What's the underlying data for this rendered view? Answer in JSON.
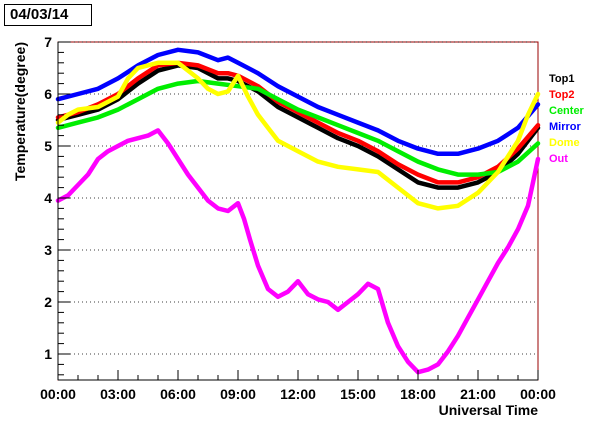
{
  "title": "04/03/14",
  "chart_data": {
    "type": "line",
    "title": "04/03/14",
    "xlabel": "Universal Time",
    "ylabel": "Temperature(degree)",
    "xlim": [
      0,
      24
    ],
    "ylim": [
      0.5,
      7
    ],
    "x_ticks": [
      {
        "value": 0,
        "label": "00:00"
      },
      {
        "value": 3,
        "label": "03:00"
      },
      {
        "value": 6,
        "label": "06:00"
      },
      {
        "value": 9,
        "label": "09:00"
      },
      {
        "value": 12,
        "label": "12:00"
      },
      {
        "value": 15,
        "label": "15:00"
      },
      {
        "value": 18,
        "label": "18:00"
      },
      {
        "value": 21,
        "label": "21:00"
      },
      {
        "value": 24,
        "label": "00:00"
      }
    ],
    "y_ticks": [
      {
        "value": 1,
        "label": "1"
      },
      {
        "value": 2,
        "label": "2"
      },
      {
        "value": 3,
        "label": "3"
      },
      {
        "value": 4,
        "label": "4"
      },
      {
        "value": 5,
        "label": "5"
      },
      {
        "value": 6,
        "label": "6"
      },
      {
        "value": 7,
        "label": "7"
      }
    ],
    "grid": "horizontal dotted",
    "legend_position": "right",
    "series": [
      {
        "name": "Top1",
        "color": "#000000",
        "x": [
          0,
          1,
          2,
          3,
          4,
          5,
          6,
          7,
          8,
          8.5,
          9,
          10,
          11,
          12,
          13,
          14,
          15,
          16,
          17,
          18,
          19,
          20,
          21,
          22,
          23,
          24
        ],
        "y": [
          5.5,
          5.6,
          5.7,
          5.9,
          6.2,
          6.45,
          6.55,
          6.5,
          6.3,
          6.3,
          6.25,
          6.05,
          5.75,
          5.55,
          5.35,
          5.15,
          5.0,
          4.8,
          4.55,
          4.3,
          4.2,
          4.2,
          4.3,
          4.5,
          4.85,
          5.35
        ]
      },
      {
        "name": "Top2",
        "color": "#ff0000",
        "x": [
          0,
          1,
          2,
          3,
          4,
          5,
          6,
          7,
          8,
          8.5,
          9,
          10,
          11,
          12,
          13,
          14,
          15,
          16,
          17,
          18,
          19,
          20,
          21,
          22,
          23,
          24
        ],
        "y": [
          5.55,
          5.65,
          5.8,
          6.0,
          6.3,
          6.55,
          6.6,
          6.55,
          6.4,
          6.4,
          6.35,
          6.15,
          5.85,
          5.65,
          5.45,
          5.25,
          5.1,
          4.9,
          4.65,
          4.45,
          4.3,
          4.3,
          4.4,
          4.6,
          4.95,
          5.4
        ]
      },
      {
        "name": "Center",
        "color": "#00ee00",
        "x": [
          0,
          1,
          2,
          3,
          4,
          5,
          6,
          7,
          8,
          9,
          10,
          11,
          12,
          13,
          14,
          15,
          16,
          17,
          18,
          19,
          20,
          21,
          22,
          23,
          24
        ],
        "y": [
          5.35,
          5.45,
          5.55,
          5.7,
          5.9,
          6.1,
          6.2,
          6.25,
          6.2,
          6.15,
          6.1,
          5.9,
          5.7,
          5.55,
          5.4,
          5.25,
          5.1,
          4.9,
          4.7,
          4.55,
          4.45,
          4.45,
          4.5,
          4.7,
          5.05
        ]
      },
      {
        "name": "Mirror",
        "color": "#0000ff",
        "x": [
          0,
          1,
          2,
          3,
          4,
          5,
          6,
          7,
          8,
          8.5,
          9,
          10,
          11,
          12,
          13,
          14,
          15,
          16,
          17,
          18,
          19,
          20,
          21,
          22,
          23,
          24
        ],
        "y": [
          5.9,
          6.0,
          6.1,
          6.3,
          6.55,
          6.75,
          6.85,
          6.8,
          6.65,
          6.7,
          6.6,
          6.4,
          6.15,
          5.95,
          5.75,
          5.6,
          5.45,
          5.3,
          5.1,
          4.95,
          4.85,
          4.85,
          4.95,
          5.1,
          5.35,
          5.8
        ]
      },
      {
        "name": "Dome",
        "color": "#ffff00",
        "x": [
          0,
          0.5,
          1,
          2,
          3,
          3.5,
          4,
          5,
          6,
          7,
          7.5,
          8,
          8.5,
          9,
          9.5,
          10,
          11,
          12,
          13,
          14,
          15,
          16,
          17,
          18,
          19,
          20,
          21,
          22,
          23,
          23.5,
          24
        ],
        "y": [
          5.45,
          5.6,
          5.7,
          5.75,
          5.95,
          6.3,
          6.5,
          6.6,
          6.6,
          6.3,
          6.1,
          6.0,
          6.05,
          6.35,
          5.95,
          5.6,
          5.1,
          4.9,
          4.7,
          4.6,
          4.55,
          4.5,
          4.2,
          3.9,
          3.8,
          3.85,
          4.1,
          4.5,
          5.1,
          5.6,
          6.0
        ]
      },
      {
        "name": "Out",
        "color": "#ff00ff",
        "x": [
          0,
          0.5,
          1,
          1.5,
          2,
          2.5,
          3,
          3.5,
          4,
          4.5,
          5,
          5.5,
          6,
          6.5,
          7,
          7.5,
          8,
          8.5,
          9,
          9.3,
          9.6,
          10,
          10.5,
          11,
          11.5,
          12,
          12.5,
          13,
          13.5,
          14,
          14.5,
          15,
          15.5,
          16,
          16.5,
          17,
          17.5,
          18,
          18.5,
          19,
          19.5,
          20,
          20.5,
          21,
          21.5,
          22,
          22.5,
          23,
          23.5,
          24
        ],
        "y": [
          3.95,
          4.05,
          4.25,
          4.45,
          4.75,
          4.9,
          5.0,
          5.1,
          5.15,
          5.2,
          5.3,
          5.05,
          4.75,
          4.45,
          4.2,
          3.95,
          3.8,
          3.75,
          3.9,
          3.6,
          3.2,
          2.7,
          2.25,
          2.1,
          2.2,
          2.4,
          2.15,
          2.05,
          2.0,
          1.85,
          2.0,
          2.15,
          2.35,
          2.25,
          1.6,
          1.15,
          0.85,
          0.65,
          0.7,
          0.8,
          1.05,
          1.35,
          1.7,
          2.05,
          2.4,
          2.75,
          3.05,
          3.4,
          3.85,
          4.75
        ]
      }
    ]
  }
}
